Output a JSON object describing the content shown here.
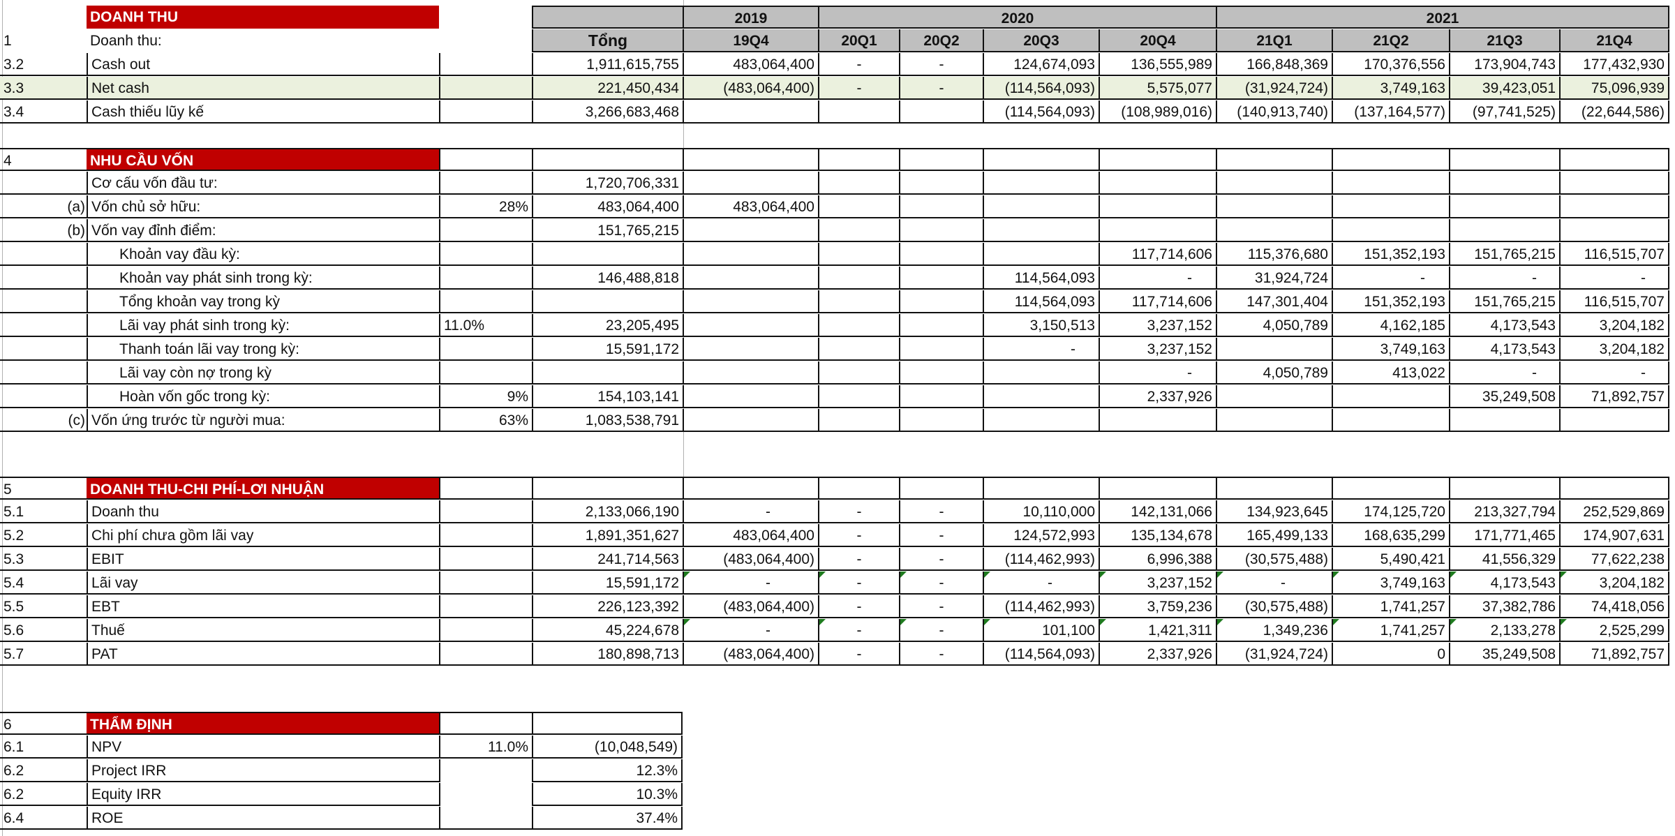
{
  "header": {
    "section_title": "DOANH THU",
    "row_no": "1",
    "row_label": "Doanh thu:",
    "total_label": "Tổng",
    "years": [
      "2019",
      "2020",
      "2021"
    ],
    "quarters": [
      "19Q4",
      "20Q1",
      "20Q2",
      "20Q3",
      "20Q4",
      "21Q1",
      "21Q2",
      "21Q3",
      "21Q4"
    ]
  },
  "cash": {
    "rows": [
      {
        "no": "3.2",
        "label": "Cash out",
        "total": "1,911,615,755",
        "values": [
          "483,064,400",
          "-",
          "-",
          "124,674,093",
          "136,555,989",
          "166,848,369",
          "170,376,556",
          "173,904,743",
          "177,432,930"
        ]
      },
      {
        "no": "3.3",
        "label": "Net cash",
        "total": "221,450,434",
        "values": [
          "(483,064,400)",
          "-",
          "-",
          "(114,564,093)",
          "5,575,077",
          "(31,924,724)",
          "3,749,163",
          "39,423,051",
          "75,096,939"
        ]
      },
      {
        "no": "3.4",
        "label": "Cash thiếu lũy kế",
        "total": "3,266,683,468",
        "values": [
          "",
          "",
          "",
          "(114,564,093)",
          "(108,989,016)",
          "(140,913,740)",
          "(137,164,577)",
          "(97,741,525)",
          "(22,644,586)"
        ]
      }
    ]
  },
  "capital": {
    "no": "4",
    "title": "NHU CẦU VỐN",
    "rows": [
      {
        "prefix": "",
        "label": "Cơ cấu vốn đầu tư:",
        "ratio": "",
        "total": "1,720,706,331",
        "values": [
          "",
          "",
          "",
          "",
          "",
          "",
          "",
          "",
          ""
        ]
      },
      {
        "prefix": "(a)",
        "label": "Vốn chủ sở hữu:",
        "ratio": "28%",
        "total": "483,064,400",
        "values": [
          "483,064,400",
          "",
          "",
          "",
          "",
          "",
          "",
          "",
          ""
        ]
      },
      {
        "prefix": "(b)",
        "label": "Vốn vay đỉnh điểm:",
        "ratio": "",
        "total": "151,765,215",
        "values": [
          "",
          "",
          "",
          "",
          "",
          "",
          "",
          "",
          ""
        ]
      },
      {
        "prefix": "",
        "label": "Khoản vay đầu kỳ:",
        "ratio": "",
        "total": "",
        "values": [
          "",
          "",
          "",
          "",
          "117,714,606",
          "115,376,680",
          "151,352,193",
          "151,765,215",
          "116,515,707"
        ]
      },
      {
        "prefix": "",
        "label": "Khoản vay phát sinh trong kỳ:",
        "ratio": "",
        "total": "146,488,818",
        "values": [
          "",
          "",
          "",
          "114,564,093",
          "-",
          "31,924,724",
          "-",
          "-",
          "-"
        ]
      },
      {
        "prefix": "",
        "label": "Tổng khoản vay trong kỳ",
        "ratio": "",
        "total": "",
        "values": [
          "",
          "",
          "",
          "114,564,093",
          "117,714,606",
          "147,301,404",
          "151,352,193",
          "151,765,215",
          "116,515,707"
        ]
      },
      {
        "prefix": "",
        "label": "Lãi vay phát sinh trong kỳ:",
        "ratio": "11.0%",
        "total": "23,205,495",
        "values": [
          "",
          "",
          "",
          "3,150,513",
          "3,237,152",
          "4,050,789",
          "4,162,185",
          "4,173,543",
          "3,204,182"
        ]
      },
      {
        "prefix": "",
        "label": "Thanh toán lãi vay trong kỳ:",
        "ratio": "",
        "total": "15,591,172",
        "values": [
          "",
          "",
          "",
          "-",
          "3,237,152",
          "",
          "3,749,163",
          "4,173,543",
          "3,204,182"
        ]
      },
      {
        "prefix": "",
        "label": "Lãi vay còn nợ trong kỳ",
        "ratio": "",
        "total": "",
        "values": [
          "",
          "",
          "",
          "",
          "-",
          "4,050,789",
          "413,022",
          "-",
          "-"
        ]
      },
      {
        "prefix": "",
        "label": "Hoàn vốn gốc trong kỳ:",
        "ratio": "9%",
        "total": "154,103,141",
        "values": [
          "",
          "",
          "",
          "",
          "2,337,926",
          "",
          "",
          "35,249,508",
          "71,892,757"
        ]
      },
      {
        "prefix": "(c)",
        "label": "Vốn ứng trước từ người mua:",
        "ratio": "63%",
        "total": "1,083,538,791",
        "values": [
          "",
          "",
          "",
          "",
          "",
          "",
          "",
          "",
          ""
        ]
      }
    ]
  },
  "pnl": {
    "no": "5",
    "title": "DOANH THU-CHI PHÍ-LƠI NHUẬN",
    "rows": [
      {
        "no": "5.1",
        "label": "Doanh thu",
        "total": "2,133,066,190",
        "values": [
          "-",
          "-",
          "-",
          "10,110,000",
          "142,131,066",
          "134,923,645",
          "174,125,720",
          "213,327,794",
          "252,529,869"
        ]
      },
      {
        "no": "5.2",
        "label": "Chi phí chưa gồm lãi vay",
        "total": "1,891,351,627",
        "values": [
          "483,064,400",
          "-",
          "-",
          "124,572,993",
          "135,134,678",
          "165,499,133",
          "168,635,299",
          "171,771,465",
          "174,907,631"
        ]
      },
      {
        "no": "5.3",
        "label": "EBIT",
        "total": "241,714,563",
        "values": [
          "(483,064,400)",
          "-",
          "-",
          "(114,462,993)",
          "6,996,388",
          "(30,575,488)",
          "5,490,421",
          "41,556,329",
          "77,622,238"
        ]
      },
      {
        "no": "5.4",
        "label": "Lãi vay",
        "total": "15,591,172",
        "values": [
          "-",
          "-",
          "-",
          "-",
          "3,237,152",
          "-",
          "3,749,163",
          "4,173,543",
          "3,204,182"
        ]
      },
      {
        "no": "5.5",
        "label": "EBT",
        "total": "226,123,392",
        "values": [
          "(483,064,400)",
          "-",
          "-",
          "(114,462,993)",
          "3,759,236",
          "(30,575,488)",
          "1,741,257",
          "37,382,786",
          "74,418,056"
        ]
      },
      {
        "no": "5.6",
        "label": "Thuế",
        "total": "45,224,678",
        "values": [
          "-",
          "-",
          "-",
          "101,100",
          "1,421,311",
          "1,349,236",
          "1,741,257",
          "2,133,278",
          "2,525,299"
        ]
      },
      {
        "no": "5.7",
        "label": "PAT",
        "total": "180,898,713",
        "values": [
          "(483,064,400)",
          "-",
          "-",
          "(114,564,093)",
          "2,337,926",
          "(31,924,724)",
          "0",
          "35,249,508",
          "71,892,757"
        ]
      }
    ]
  },
  "appraisal": {
    "no": "6",
    "title": "THẨM ĐỊNH",
    "rows": [
      {
        "no": "6.1",
        "label": "NPV",
        "ratio": "11.0%",
        "value": "(10,048,549)"
      },
      {
        "no": "6.2",
        "label": "Project IRR",
        "ratio": "",
        "value": "12.3%"
      },
      {
        "no": "6.2",
        "label": "Equity IRR",
        "ratio": "",
        "value": "10.3%"
      },
      {
        "no": "6.4",
        "label": "ROE",
        "ratio": "",
        "value": "37.4%"
      }
    ]
  },
  "colors": {
    "section_red": "#c00000",
    "header_gray": "#bfbfbf",
    "highlight_green": "#ebf1de",
    "error_triangle": "#1e7b1e"
  }
}
